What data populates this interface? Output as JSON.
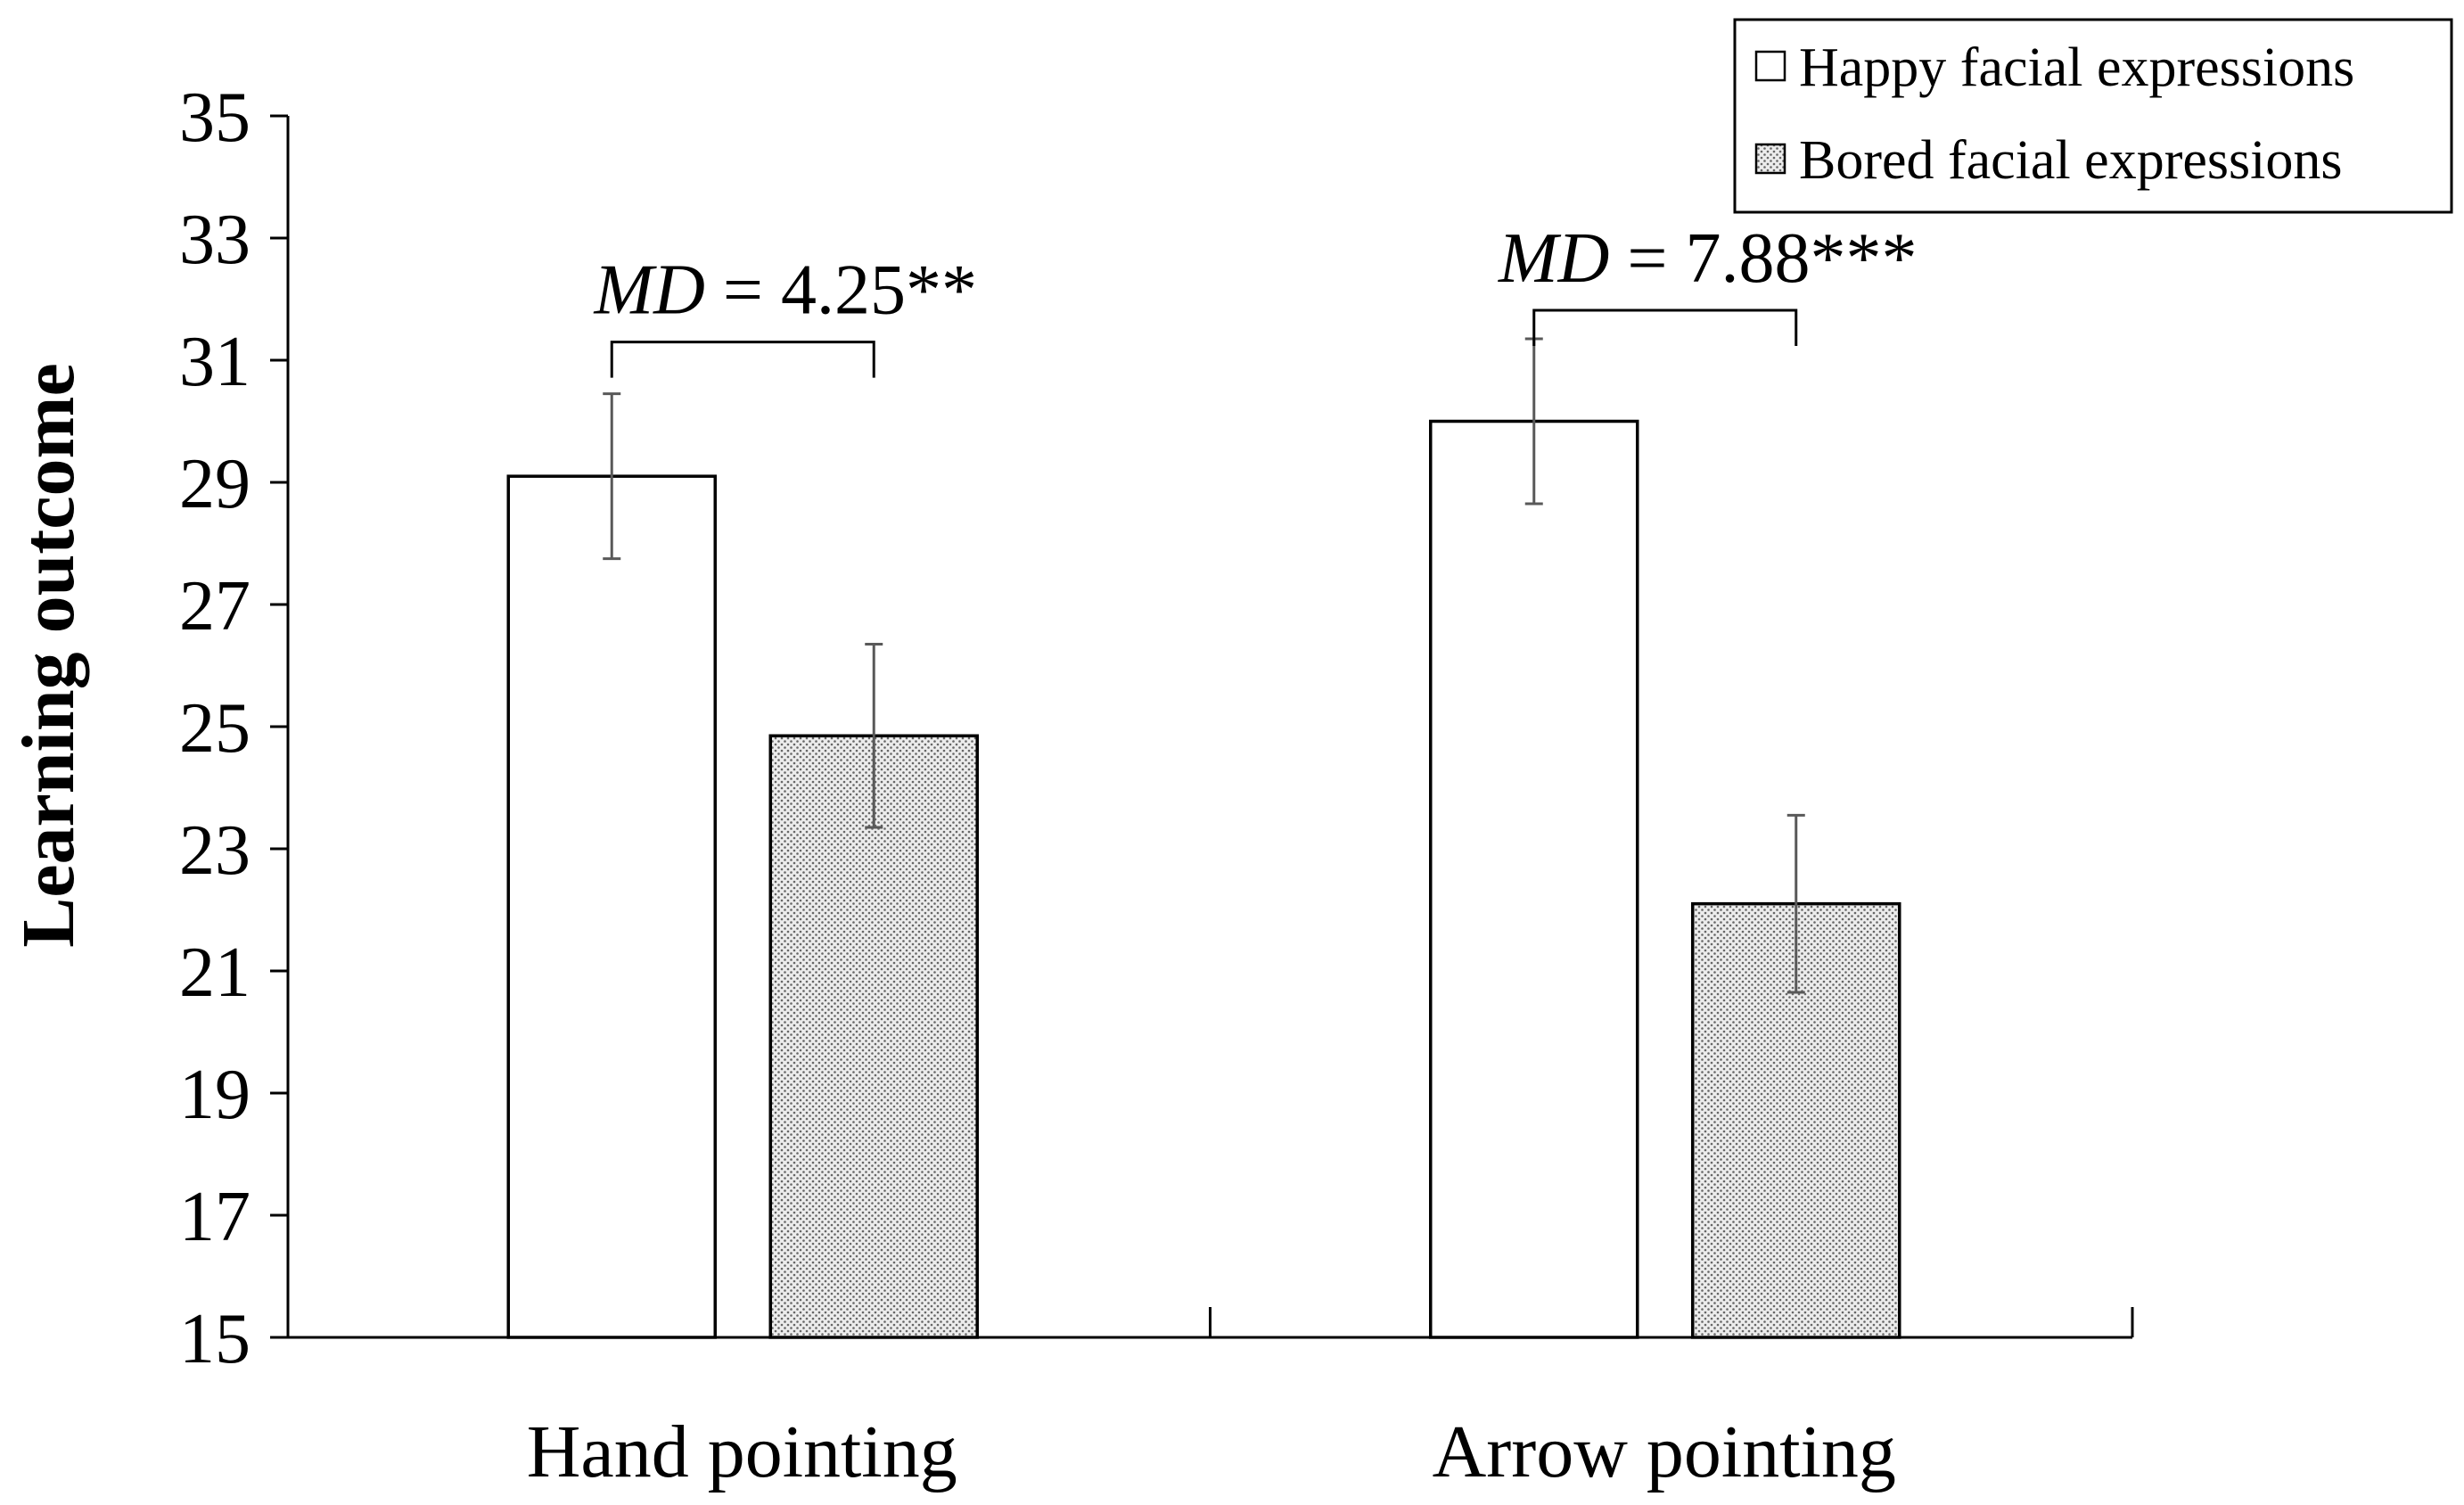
{
  "chart_data": {
    "type": "bar",
    "title": "",
    "xlabel": "",
    "ylabel": "Learning outcome",
    "ylim": [
      15,
      35
    ],
    "yticks": [
      "35",
      "33",
      "31",
      "29",
      "27",
      "25",
      "23",
      "21",
      "19",
      "17",
      "15"
    ],
    "grid": false,
    "legend_position": "top-right",
    "categories": [
      "Hand pointing",
      "Arrow pointing"
    ],
    "series": [
      {
        "name": "Happy facial expressions",
        "fill": "white",
        "values": [
          29.1,
          30.0
        ],
        "error": [
          1.35,
          1.35
        ]
      },
      {
        "name": "Bored facial expressions",
        "fill": "dotted",
        "values": [
          24.85,
          22.1
        ],
        "error": [
          1.5,
          1.45
        ]
      }
    ],
    "annotations": [
      {
        "category": "Hand pointing",
        "prefix": "MD",
        "text": " = 4.25**"
      },
      {
        "category": "Arrow pointing",
        "prefix": "MD",
        "text": " = 7.88***"
      }
    ],
    "colors": {
      "axis": "#000000",
      "bar_outline": "#000000",
      "happy_fill": "#ffffff",
      "bored_fill": "#e9e9e9",
      "dot": "#6a6a6a",
      "error_bar": "#595959"
    }
  }
}
